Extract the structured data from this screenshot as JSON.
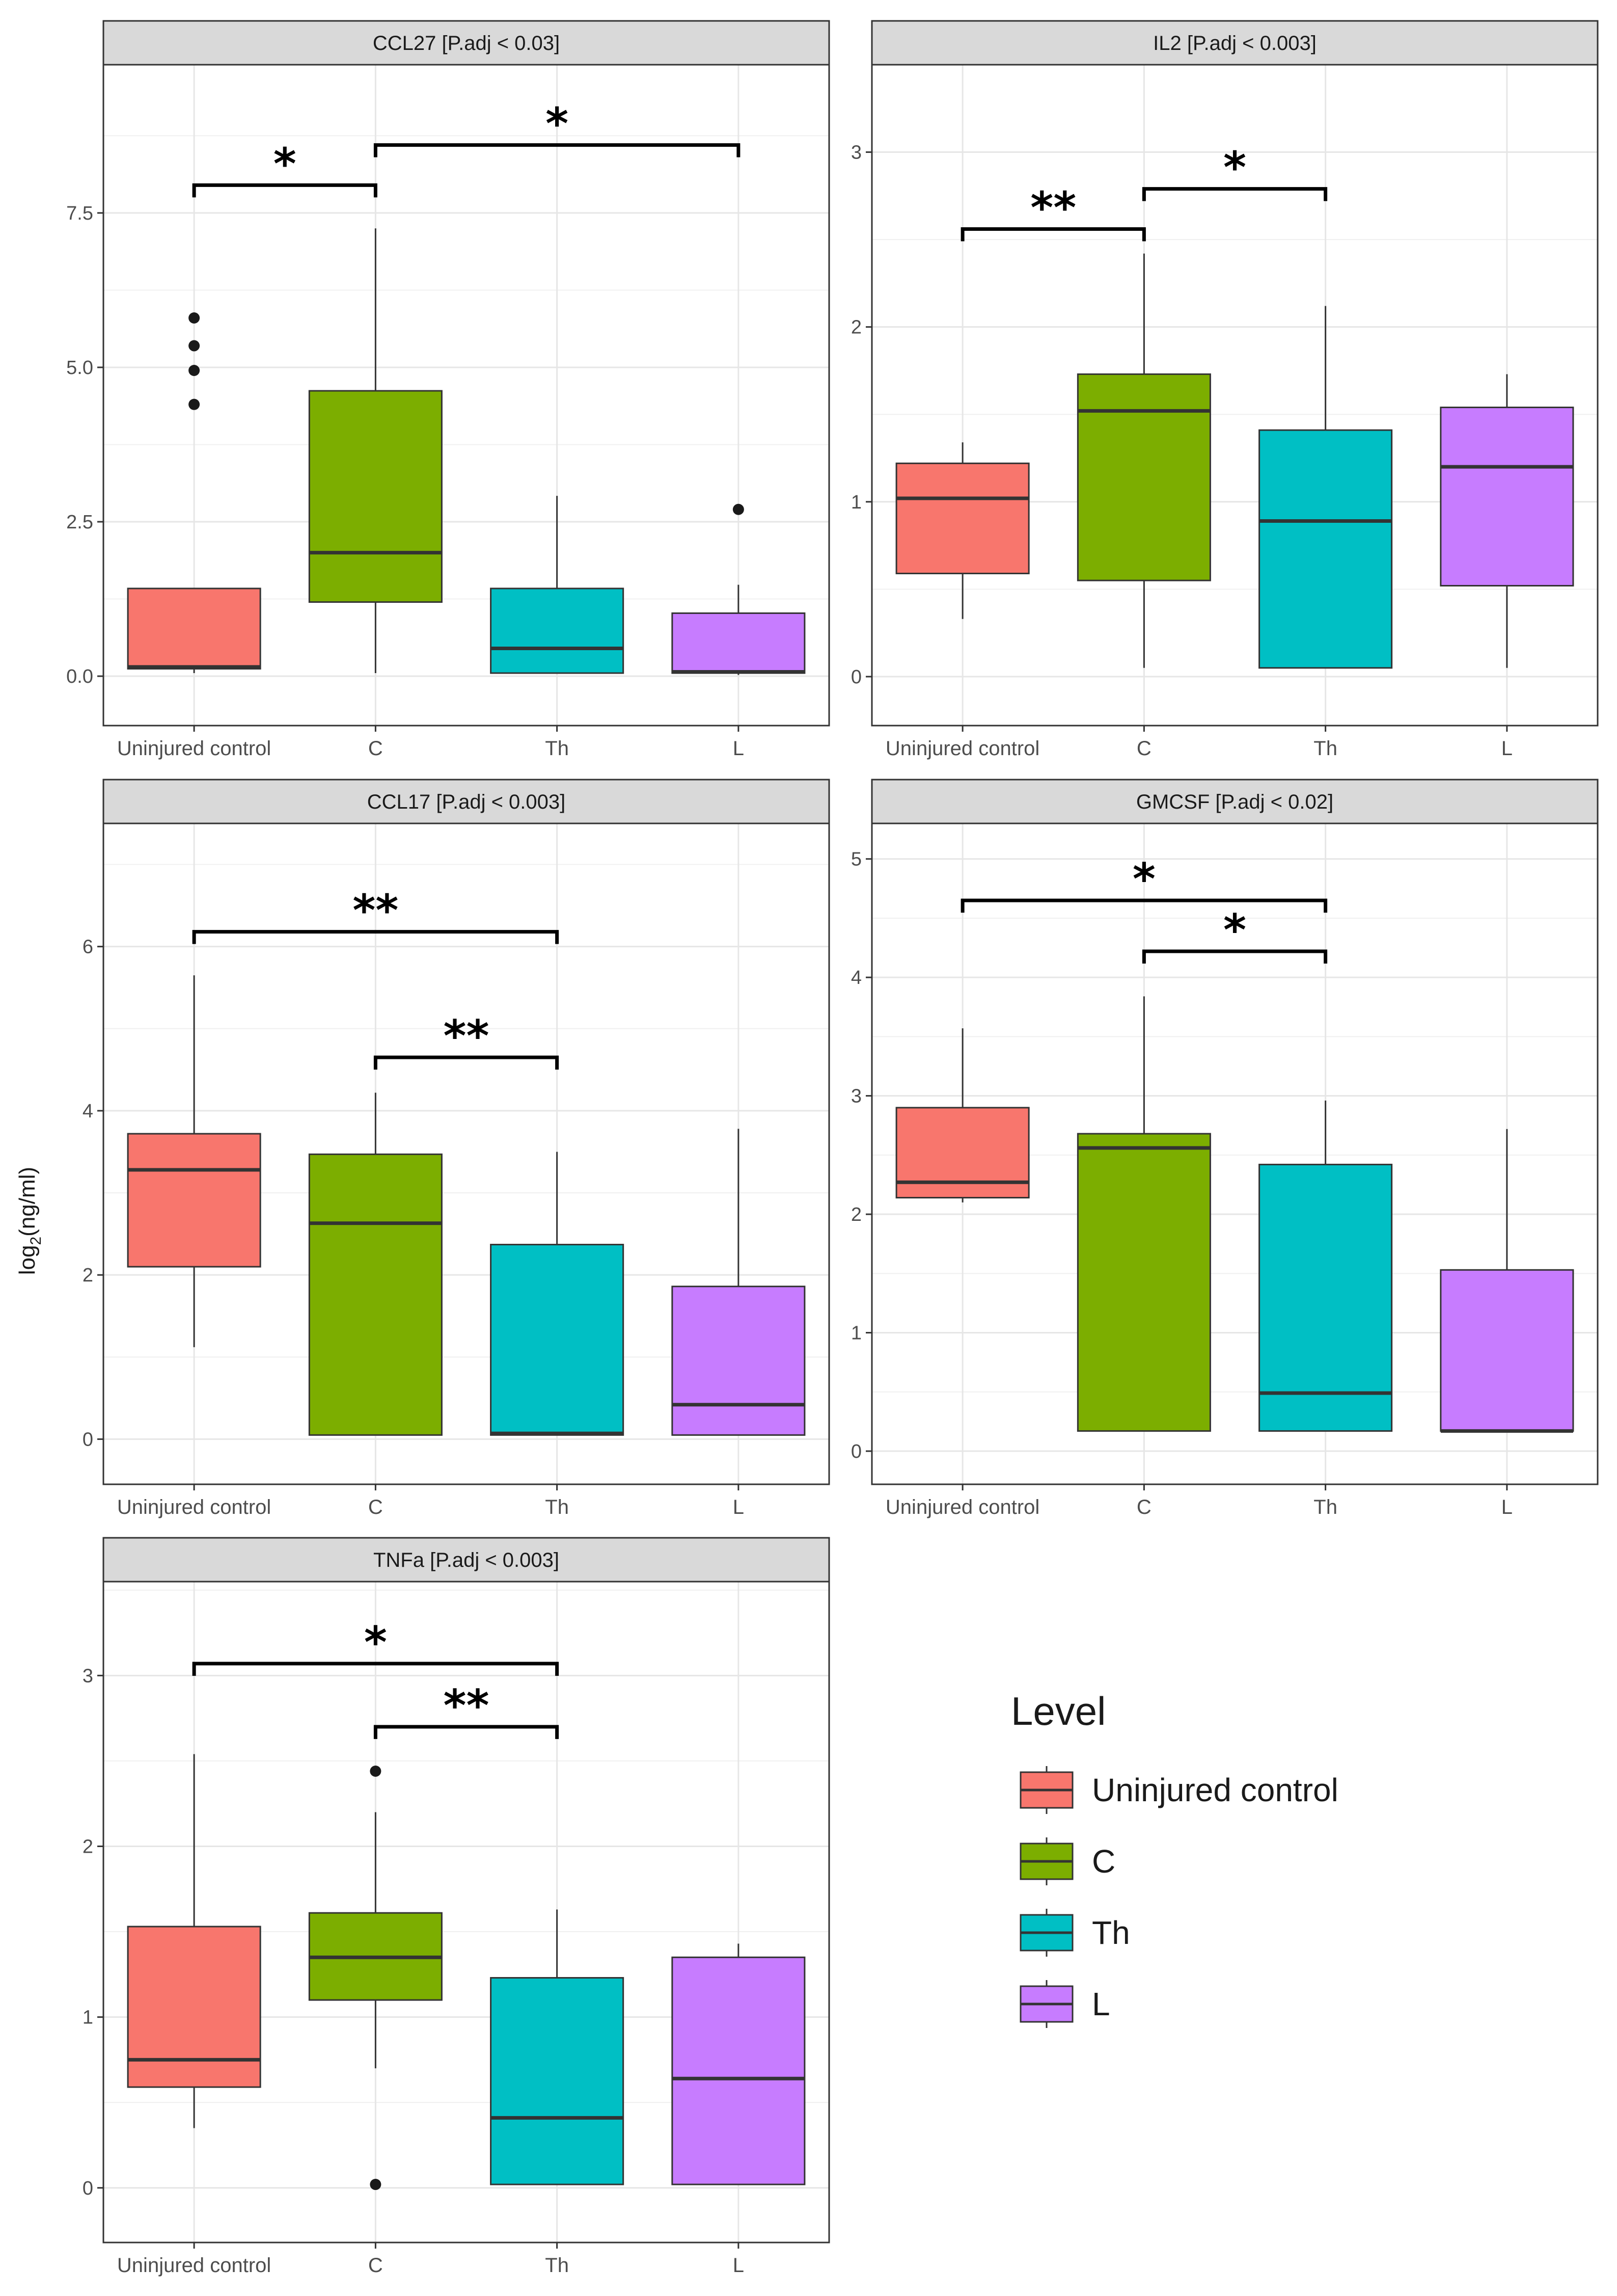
{
  "chart_data": {
    "type": "boxplot",
    "ylabel": "log2(ng/ml)",
    "categories": [
      "Uninjured control",
      "C",
      "Th",
      "L"
    ],
    "colors": [
      "#F8766D",
      "#7CAE00",
      "#00BFC4",
      "#C77CFF"
    ],
    "legend": {
      "title": "Level",
      "placement": "bottom-right",
      "items": [
        "Uninjured control",
        "C",
        "Th",
        "L"
      ]
    },
    "panels": [
      {
        "title": "CCL27 [P.adj < 0.03]",
        "ylim": [
          -0.8,
          9.9
        ],
        "yticks": [
          0.0,
          2.5,
          5.0,
          7.5
        ],
        "ytick_labels": [
          "0.0",
          "2.5",
          "5.0",
          "7.5"
        ],
        "boxes": [
          {
            "whisker_low": 0.05,
            "q1": 0.12,
            "median": 0.15,
            "q3": 1.42,
            "whisker_high": 1.42,
            "outliers": [
              4.4,
              4.95,
              5.35,
              5.8
            ]
          },
          {
            "whisker_low": 0.05,
            "q1": 1.2,
            "median": 2.0,
            "q3": 4.62,
            "whisker_high": 7.25,
            "outliers": []
          },
          {
            "whisker_low": 0.05,
            "q1": 0.05,
            "median": 0.45,
            "q3": 1.42,
            "whisker_high": 2.92,
            "outliers": []
          },
          {
            "whisker_low": 0.02,
            "q1": 0.05,
            "median": 0.07,
            "q3": 1.02,
            "whisker_high": 1.48,
            "outliers": [
              2.7
            ]
          }
        ],
        "brackets": [
          {
            "from": 0,
            "to": 1,
            "y": 7.95,
            "label": "*"
          },
          {
            "from": 1,
            "to": 3,
            "y": 8.6,
            "label": "*"
          }
        ]
      },
      {
        "title": "IL2 [P.adj < 0.003]",
        "ylim": [
          -0.28,
          3.5
        ],
        "yticks": [
          0,
          1,
          2,
          3
        ],
        "ytick_labels": [
          "0",
          "1",
          "2",
          "3"
        ],
        "boxes": [
          {
            "whisker_low": 0.33,
            "q1": 0.59,
            "median": 1.02,
            "q3": 1.22,
            "whisker_high": 1.34,
            "outliers": []
          },
          {
            "whisker_low": 0.05,
            "q1": 0.55,
            "median": 1.52,
            "q3": 1.73,
            "whisker_high": 2.42,
            "outliers": []
          },
          {
            "whisker_low": 0.05,
            "q1": 0.05,
            "median": 0.89,
            "q3": 1.41,
            "whisker_high": 2.12,
            "outliers": []
          },
          {
            "whisker_low": 0.05,
            "q1": 0.52,
            "median": 1.2,
            "q3": 1.54,
            "whisker_high": 1.73,
            "outliers": []
          }
        ],
        "brackets": [
          {
            "from": 0,
            "to": 1,
            "y": 2.56,
            "label": "**"
          },
          {
            "from": 1,
            "to": 2,
            "y": 2.79,
            "label": "*"
          }
        ]
      },
      {
        "title": "CCL17 [P.adj < 0.003]",
        "ylim": [
          -0.55,
          7.5
        ],
        "yticks": [
          0,
          2,
          4,
          6
        ],
        "ytick_labels": [
          "0",
          "2",
          "4",
          "6"
        ],
        "boxes": [
          {
            "whisker_low": 1.12,
            "q1": 2.1,
            "median": 3.28,
            "q3": 3.72,
            "whisker_high": 5.65,
            "outliers": []
          },
          {
            "whisker_low": 0.05,
            "q1": 0.05,
            "median": 2.63,
            "q3": 3.47,
            "whisker_high": 4.22,
            "outliers": []
          },
          {
            "whisker_low": 0.05,
            "q1": 0.05,
            "median": 0.07,
            "q3": 2.37,
            "whisker_high": 3.5,
            "outliers": []
          },
          {
            "whisker_low": 0.05,
            "q1": 0.05,
            "median": 0.42,
            "q3": 1.86,
            "whisker_high": 3.78,
            "outliers": []
          }
        ],
        "brackets": [
          {
            "from": 0,
            "to": 2,
            "y": 6.18,
            "label": "**"
          },
          {
            "from": 1,
            "to": 2,
            "y": 4.65,
            "label": "**"
          }
        ]
      },
      {
        "title": "GMCSF [P.adj < 0.02]",
        "ylim": [
          -0.28,
          5.3
        ],
        "yticks": [
          0,
          1,
          2,
          3,
          4,
          5
        ],
        "ytick_labels": [
          "0",
          "1",
          "2",
          "3",
          "4",
          "5"
        ],
        "boxes": [
          {
            "whisker_low": 2.1,
            "q1": 2.14,
            "median": 2.27,
            "q3": 2.9,
            "whisker_high": 3.57,
            "outliers": []
          },
          {
            "whisker_low": 0.17,
            "q1": 0.17,
            "median": 2.56,
            "q3": 2.68,
            "whisker_high": 3.84,
            "outliers": []
          },
          {
            "whisker_low": 0.17,
            "q1": 0.17,
            "median": 0.49,
            "q3": 2.42,
            "whisker_high": 2.96,
            "outliers": []
          },
          {
            "whisker_low": 0.17,
            "q1": 0.17,
            "median": 0.17,
            "q3": 1.53,
            "whisker_high": 2.72,
            "outliers": []
          }
        ],
        "brackets": [
          {
            "from": 0,
            "to": 2,
            "y": 4.65,
            "label": "*"
          },
          {
            "from": 1,
            "to": 2,
            "y": 4.22,
            "label": "*"
          }
        ]
      },
      {
        "title": "TNFa [P.adj < 0.003]",
        "ylim": [
          -0.32,
          3.55
        ],
        "yticks": [
          0,
          1,
          2,
          3
        ],
        "ytick_labels": [
          "0",
          "1",
          "2",
          "3"
        ],
        "boxes": [
          {
            "whisker_low": 0.35,
            "q1": 0.59,
            "median": 0.75,
            "q3": 1.53,
            "whisker_high": 2.54,
            "outliers": []
          },
          {
            "whisker_low": 0.7,
            "q1": 1.1,
            "median": 1.35,
            "q3": 1.61,
            "whisker_high": 2.2,
            "outliers": [
              0.02,
              2.44
            ]
          },
          {
            "whisker_low": 0.02,
            "q1": 0.02,
            "median": 0.41,
            "q3": 1.23,
            "whisker_high": 1.63,
            "outliers": []
          },
          {
            "whisker_low": 0.02,
            "q1": 0.02,
            "median": 0.64,
            "q3": 1.35,
            "whisker_high": 1.43,
            "outliers": []
          }
        ],
        "brackets": [
          {
            "from": 0,
            "to": 2,
            "y": 3.07,
            "label": "*"
          },
          {
            "from": 1,
            "to": 2,
            "y": 2.7,
            "label": "**"
          }
        ]
      }
    ]
  }
}
